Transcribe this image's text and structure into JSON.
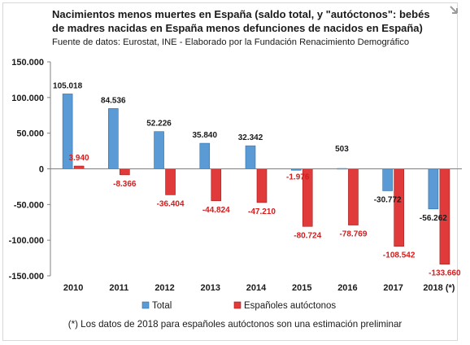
{
  "header": {
    "title_line1": "Nacimientos menos muertes en España (saldo total, y \"autóctonos\": bebés",
    "title_line2": "de madres nacidas en España menos defunciones de nacidos en España)",
    "source": "Fuente de datos: Eurostat, INE -  Elaborado por la Fundación Renacimiento Demográfico"
  },
  "footnote": "(*) Los datos de 2018 para españoles autóctonos son una estimación preliminar",
  "colors": {
    "total": "#5b9bd5",
    "total_edge": "#2f6fa8",
    "autoctonos": "#e03a3a",
    "autoctonos_edge": "#a11b1b",
    "label_red": "#d41c1c"
  },
  "chart_data": {
    "type": "bar",
    "title": "Nacimientos menos muertes en España (saldo total, y \"autóctonos\": bebés de madres nacidas en España menos defunciones de nacidos en España)",
    "categories": [
      "2010",
      "2011",
      "2012",
      "2013",
      "2014",
      "2015",
      "2016",
      "2017",
      "2018 (*)"
    ],
    "series": [
      {
        "name": "Total",
        "values": [
          105018,
          84536,
          52226,
          35840,
          32342,
          -1976,
          503,
          -30772,
          -56262
        ],
        "labels": [
          "105.018",
          "84.536",
          "52.226",
          "35.840",
          "32.342",
          "-1.976",
          "503",
          "-30.772",
          "-56.262"
        ]
      },
      {
        "name": "Españoles autóctonos",
        "values": [
          3940,
          -8366,
          -36404,
          -44824,
          -47210,
          -80724,
          -78769,
          -108542,
          -133660
        ],
        "labels": [
          "3.940",
          "-8.366",
          "-36.404",
          "-44.824",
          "-47.210",
          "-80.724",
          "-78.769",
          "-108.542",
          "-133.660"
        ]
      }
    ],
    "ylim": [
      -150000,
      150000
    ],
    "yticks": [
      150000,
      100000,
      50000,
      0,
      -50000,
      -100000,
      -150000
    ],
    "ytick_labels": [
      "150.000",
      "100.000",
      "50.000",
      "0",
      "-50.000",
      "-100.000",
      "-150.000"
    ],
    "xlabel": "",
    "ylabel": "",
    "grid": false,
    "legend": "bottom"
  }
}
